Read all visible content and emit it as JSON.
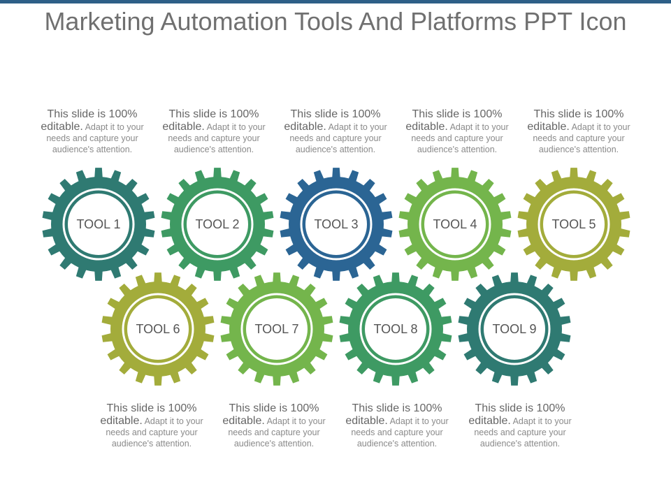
{
  "title": "Marketing Automation Tools And Platforms PPT Icon",
  "colors": {
    "top_bar": "#2e5f87",
    "teal": "#2f7a72",
    "green": "#3e9a63",
    "blue": "#2b6594",
    "light_green": "#74b54c",
    "olive": "#a3ac3b",
    "center_fill": "#ffffff"
  },
  "gear_icon": "gear-icon",
  "tools": [
    {
      "label": "TOOL 1",
      "color": "#2f7a72"
    },
    {
      "label": "TOOL 2",
      "color": "#3e9a63"
    },
    {
      "label": "TOOL 3",
      "color": "#2b6594"
    },
    {
      "label": "TOOL 4",
      "color": "#74b54c"
    },
    {
      "label": "TOOL 5",
      "color": "#a3ac3b"
    },
    {
      "label": "TOOL 6",
      "color": "#a3ac3b"
    },
    {
      "label": "TOOL 7",
      "color": "#74b54c"
    },
    {
      "label": "TOOL 8",
      "color": "#3e9a63"
    },
    {
      "label": "TOOL 9",
      "color": "#2f7a72"
    }
  ],
  "captions": [
    {
      "main": "This slide is 100%",
      "main2": "editable.",
      "rest": " Adapt it to your needs and capture your audience's attention."
    },
    {
      "main": "This slide is 100%",
      "main2": "editable.",
      "rest": " Adapt it to your needs and capture your audience's attention."
    },
    {
      "main": "This slide is 100%",
      "main2": "editable.",
      "rest": " Adapt it to your needs and capture your audience's attention."
    },
    {
      "main": "This slide is 100%",
      "main2": "editable.",
      "rest": " Adapt it to your needs and capture your audience's attention."
    },
    {
      "main": "This slide is 100%",
      "main2": "editable.",
      "rest": " Adapt it to your needs and capture your audience's attention."
    },
    {
      "main": "This slide is 100%",
      "main2": "editable.",
      "rest": " Adapt it to your needs and capture your audience's attention."
    },
    {
      "main": "This slide is 100%",
      "main2": "editable.",
      "rest": " Adapt it to your needs and capture your audience's attention."
    },
    {
      "main": "This slide is 100%",
      "main2": "editable.",
      "rest": " Adapt it to your needs and capture your audience's attention."
    },
    {
      "main": "This slide is 100%",
      "main2": "editable.",
      "rest": " Adapt it to your needs and capture your audience's attention."
    }
  ]
}
